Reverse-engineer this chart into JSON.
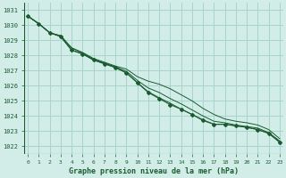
{
  "title": "Graphe pression niveau de la mer (hPa)",
  "bg_color": "#d2ede8",
  "grid_color": "#a8d4cc",
  "line_color": "#1a5c30",
  "x_ticks": [
    0,
    1,
    2,
    3,
    4,
    5,
    6,
    7,
    8,
    9,
    10,
    11,
    12,
    13,
    14,
    15,
    16,
    17,
    18,
    19,
    20,
    21,
    22,
    23
  ],
  "y_ticks": [
    1022,
    1023,
    1024,
    1025,
    1026,
    1027,
    1028,
    1029,
    1030,
    1031
  ],
  "ylim": [
    1021.5,
    1031.5
  ],
  "xlim": [
    -0.3,
    23.3
  ],
  "series1": [
    1030.6,
    1030.1,
    1029.5,
    1029.3,
    1028.5,
    1028.2,
    1027.8,
    1027.55,
    1027.3,
    1027.1,
    1026.6,
    1026.3,
    1026.1,
    1025.8,
    1025.4,
    1025.0,
    1024.5,
    1024.1,
    1023.8,
    1023.65,
    1023.55,
    1023.4,
    1023.1,
    1022.5
  ],
  "series2": [
    1030.6,
    1030.1,
    1029.5,
    1029.3,
    1028.5,
    1028.15,
    1027.75,
    1027.5,
    1027.25,
    1026.95,
    1026.35,
    1025.85,
    1025.55,
    1025.15,
    1024.8,
    1024.4,
    1024.0,
    1023.65,
    1023.55,
    1023.4,
    1023.3,
    1023.2,
    1022.9,
    1022.35
  ],
  "series3": [
    1030.6,
    1030.1,
    1029.5,
    1029.25,
    1028.35,
    1028.1,
    1027.7,
    1027.45,
    1027.2,
    1026.85,
    1026.2,
    1025.6,
    1025.2,
    1024.85,
    1024.45,
    1024.1,
    1023.75,
    1023.45,
    1023.45,
    1023.35,
    1023.25,
    1023.1,
    1022.85,
    1022.3
  ],
  "main_series": [
    1030.6,
    1030.1,
    1029.5,
    1029.25,
    1028.35,
    1028.1,
    1027.7,
    1027.45,
    1027.2,
    1026.85,
    1026.2,
    1025.55,
    1025.15,
    1024.75,
    1024.45,
    1024.1,
    1023.7,
    1023.45,
    1023.45,
    1023.35,
    1023.25,
    1023.1,
    1022.85,
    1022.25
  ]
}
